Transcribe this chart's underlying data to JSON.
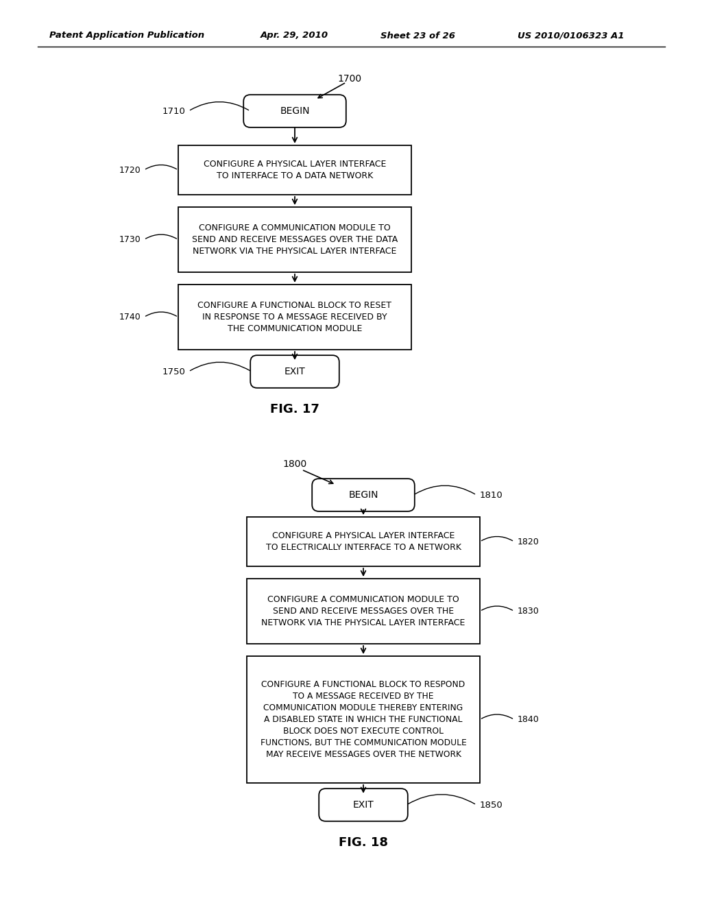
{
  "bg_color": "#ffffff",
  "header_text": "Patent Application Publication",
  "header_date": "Apr. 29, 2010",
  "header_sheet": "Sheet 23 of 26",
  "header_patent": "US 2010/0106323 A1",
  "fig17_label": "1700",
  "fig17_caption": "FIG. 17",
  "fig18_label": "1800",
  "fig18_caption": "FIG. 18",
  "f17_begin_label": "BEGIN",
  "f17_begin_ref": "1710",
  "f17_box1_text": "CONFIGURE A PHYSICAL LAYER INTERFACE\nTO INTERFACE TO A DATA NETWORK",
  "f17_box1_ref": "1720",
  "f17_box2_text": "CONFIGURE A COMMUNICATION MODULE TO\nSEND AND RECEIVE MESSAGES OVER THE DATA\nNETWORK VIA THE PHYSICAL LAYER INTERFACE",
  "f17_box2_ref": "1730",
  "f17_box3_text": "CONFIGURE A FUNCTIONAL BLOCK TO RESET\nIN RESPONSE TO A MESSAGE RECEIVED BY\nTHE COMMUNICATION MODULE",
  "f17_box3_ref": "1740",
  "f17_exit_label": "EXIT",
  "f17_exit_ref": "1750",
  "f18_begin_label": "BEGIN",
  "f18_begin_ref": "1810",
  "f18_box1_text": "CONFIGURE A PHYSICAL LAYER INTERFACE\nTO ELECTRICALLY INTERFACE TO A NETWORK",
  "f18_box1_ref": "1820",
  "f18_box2_text": "CONFIGURE A COMMUNICATION MODULE TO\nSEND AND RECEIVE MESSAGES OVER THE\nNETWORK VIA THE PHYSICAL LAYER INTERFACE",
  "f18_box2_ref": "1830",
  "f18_box3_text": "CONFIGURE A FUNCTIONAL BLOCK TO RESPOND\nTO A MESSAGE RECEIVED BY THE\nCOMMUNICATION MODULE THEREBY ENTERING\nA DISABLED STATE IN WHICH THE FUNCTIONAL\nBLOCK DOES NOT EXECUTE CONTROL\nFUNCTIONS, BUT THE COMMUNICATION MODULE\nMAY RECEIVE MESSAGES OVER THE NETWORK",
  "f18_box3_ref": "1840",
  "f18_exit_label": "EXIT",
  "f18_exit_ref": "1850"
}
